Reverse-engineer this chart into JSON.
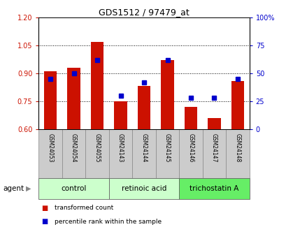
{
  "title": "GDS1512 / 97479_at",
  "samples": [
    "GSM24053",
    "GSM24054",
    "GSM24055",
    "GSM24143",
    "GSM24144",
    "GSM24145",
    "GSM24146",
    "GSM24147",
    "GSM24148"
  ],
  "bar_values": [
    0.91,
    0.93,
    1.07,
    0.75,
    0.833,
    0.97,
    0.72,
    0.66,
    0.86
  ],
  "percentile_values": [
    45,
    50,
    62,
    30,
    42,
    62,
    28,
    28,
    45
  ],
  "bar_color": "#cc1100",
  "dot_color": "#0000cc",
  "ylim_left": [
    0.6,
    1.2
  ],
  "ylim_right": [
    0,
    100
  ],
  "yticks_left": [
    0.6,
    0.75,
    0.9,
    1.05,
    1.2
  ],
  "yticks_right": [
    0,
    25,
    50,
    75,
    100
  ],
  "ytick_labels_right": [
    "0",
    "25",
    "50",
    "75",
    "100%"
  ],
  "groups": [
    {
      "label": "control",
      "span": [
        0,
        2
      ],
      "color": "#ccffcc"
    },
    {
      "label": "retinoic acid",
      "span": [
        3,
        5
      ],
      "color": "#ccffcc"
    },
    {
      "label": "trichostatin A",
      "span": [
        6,
        8
      ],
      "color": "#66ee66"
    }
  ],
  "agent_label": "agent",
  "legend_bar_label": "transformed count",
  "legend_dot_label": "percentile rank within the sample",
  "bar_baseline": 0.6,
  "background_color": "#ffffff",
  "plot_bg_color": "#ffffff",
  "label_area_color": "#cccccc",
  "grid_lines": [
    0.75,
    0.9,
    1.05
  ]
}
